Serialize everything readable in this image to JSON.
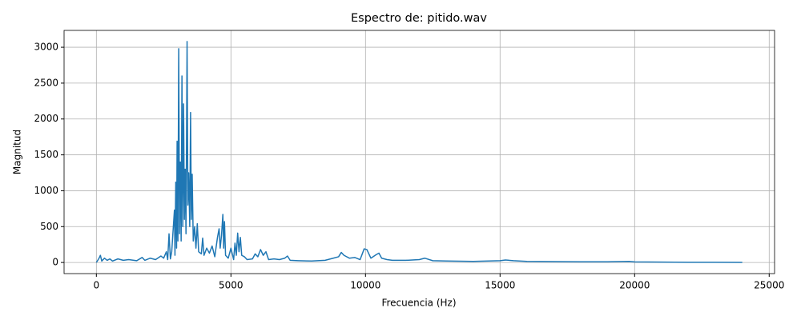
{
  "chart_data": {
    "type": "line",
    "title": "Espectro de: pitido.wav",
    "xlabel": "Frecuencia (Hz)",
    "ylabel": "Magnitud",
    "x": [
      0,
      100,
      150,
      200,
      300,
      400,
      500,
      600,
      800,
      1000,
      1200,
      1500,
      1700,
      1800,
      2000,
      2200,
      2400,
      2500,
      2600,
      2650,
      2700,
      2750,
      2800,
      2900,
      2920,
      2950,
      2980,
      3000,
      3030,
      3060,
      3090,
      3120,
      3150,
      3180,
      3210,
      3240,
      3270,
      3300,
      3330,
      3370,
      3400,
      3430,
      3470,
      3500,
      3530,
      3560,
      3600,
      3650,
      3700,
      3750,
      3800,
      3900,
      3950,
      4000,
      4100,
      4200,
      4300,
      4400,
      4500,
      4560,
      4600,
      4650,
      4700,
      4730,
      4760,
      4800,
      4900,
      5000,
      5100,
      5150,
      5200,
      5250,
      5300,
      5350,
      5400,
      5500,
      5600,
      5800,
      5900,
      6000,
      6100,
      6200,
      6300,
      6400,
      6600,
      6800,
      7000,
      7100,
      7200,
      7500,
      8000,
      8500,
      8800,
      9000,
      9100,
      9200,
      9400,
      9600,
      9800,
      9950,
      10050,
      10200,
      10400,
      10500,
      10600,
      10800,
      11000,
      11500,
      12000,
      12200,
      12500,
      13000,
      14000,
      15000,
      15200,
      15500,
      16000,
      17000,
      18000,
      19000,
      19800,
      20000,
      21000,
      22000,
      23000,
      24000
    ],
    "series": [
      {
        "name": "Magnitud",
        "color": "#1f77b4",
        "values": [
          0,
          60,
          100,
          20,
          60,
          30,
          50,
          20,
          50,
          30,
          40,
          25,
          70,
          30,
          60,
          40,
          90,
          60,
          150,
          40,
          400,
          50,
          150,
          730,
          100,
          1120,
          200,
          1690,
          300,
          2980,
          400,
          1400,
          300,
          2600,
          500,
          2210,
          600,
          1300,
          400,
          3080,
          800,
          1250,
          500,
          2090,
          600,
          1230,
          300,
          500,
          200,
          540,
          150,
          120,
          340,
          100,
          200,
          130,
          230,
          80,
          350,
          470,
          200,
          380,
          670,
          200,
          570,
          100,
          60,
          200,
          40,
          270,
          100,
          410,
          150,
          350,
          100,
          80,
          40,
          50,
          120,
          80,
          180,
          100,
          150,
          40,
          50,
          40,
          60,
          90,
          30,
          25,
          20,
          30,
          60,
          80,
          140,
          100,
          60,
          70,
          40,
          190,
          180,
          60,
          110,
          130,
          60,
          40,
          30,
          30,
          40,
          60,
          25,
          20,
          15,
          25,
          35,
          25,
          15,
          12,
          10,
          10,
          15,
          8,
          5,
          3,
          2,
          1
        ]
      }
    ],
    "xlim": [
      -1200,
      25200
    ],
    "ylim": [
      -155,
      3235
    ],
    "xticks": [
      0,
      5000,
      10000,
      15000,
      20000,
      25000
    ],
    "yticks": [
      0,
      500,
      1000,
      1500,
      2000,
      2500,
      3000
    ],
    "grid": true
  }
}
